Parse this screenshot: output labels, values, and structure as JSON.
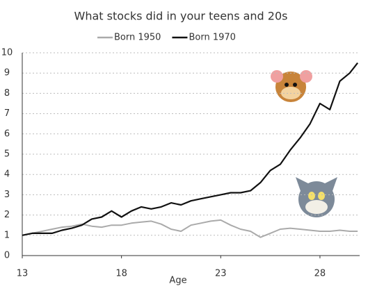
{
  "chart_data": {
    "type": "line",
    "title": "What stocks did in your teens and 20s",
    "x_label": "Age",
    "x": [
      13,
      13.5,
      14,
      14.5,
      15,
      15.5,
      16,
      16.5,
      17,
      17.5,
      18,
      18.5,
      19,
      19.5,
      20,
      20.5,
      21,
      21.5,
      22,
      22.5,
      23,
      23.5,
      24,
      24.5,
      25,
      25.5,
      26,
      26.5,
      27,
      27.5,
      28,
      28.5,
      29,
      29.5,
      29.9
    ],
    "series": [
      {
        "name": "Born 1950",
        "color": "#aaaaaa",
        "values": [
          1.0,
          1.1,
          1.2,
          1.3,
          1.4,
          1.45,
          1.55,
          1.45,
          1.4,
          1.5,
          1.5,
          1.6,
          1.65,
          1.7,
          1.55,
          1.3,
          1.2,
          1.5,
          1.6,
          1.7,
          1.75,
          1.5,
          1.3,
          1.2,
          0.9,
          1.1,
          1.3,
          1.35,
          1.3,
          1.25,
          1.2,
          1.2,
          1.25,
          1.2,
          1.2
        ]
      },
      {
        "name": "Born 1970",
        "color": "#111111",
        "values": [
          1.0,
          1.1,
          1.1,
          1.1,
          1.25,
          1.35,
          1.5,
          1.8,
          1.9,
          2.2,
          1.9,
          2.2,
          2.4,
          2.3,
          2.4,
          2.6,
          2.5,
          2.7,
          2.8,
          2.9,
          3.0,
          3.1,
          3.1,
          3.2,
          3.6,
          4.2,
          4.5,
          5.2,
          5.8,
          6.5,
          7.5,
          7.2,
          8.6,
          9.0,
          9.5
        ]
      }
    ],
    "xlim": [
      13,
      30
    ],
    "xticks": [
      13,
      18,
      23,
      28
    ],
    "ylim": [
      0,
      10
    ],
    "yticks": [
      0,
      1,
      2,
      3,
      4,
      5,
      6,
      7,
      8,
      9,
      10
    ],
    "grid": true
  }
}
